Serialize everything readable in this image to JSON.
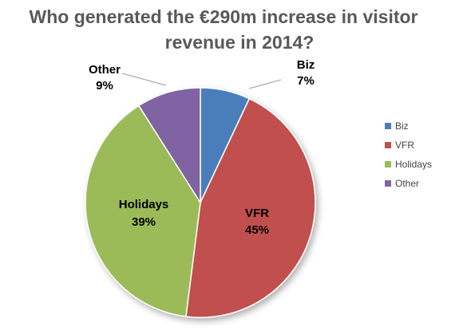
{
  "chart_data": {
    "type": "pie",
    "title_lines": [
      "Who generated the €290m increase in visitor",
      "revenue in 2014?"
    ],
    "slices": [
      {
        "name": "Biz",
        "value": 7,
        "label": "7%",
        "color": "#4a7ebb"
      },
      {
        "name": "VFR",
        "value": 45,
        "label": "45%",
        "color": "#c0504d"
      },
      {
        "name": "Holidays",
        "value": 39,
        "label": "39%",
        "color": "#9bbb59"
      },
      {
        "name": "Other",
        "value": 9,
        "label": "9%",
        "color": "#8064a2"
      }
    ],
    "legend_position": "right"
  }
}
